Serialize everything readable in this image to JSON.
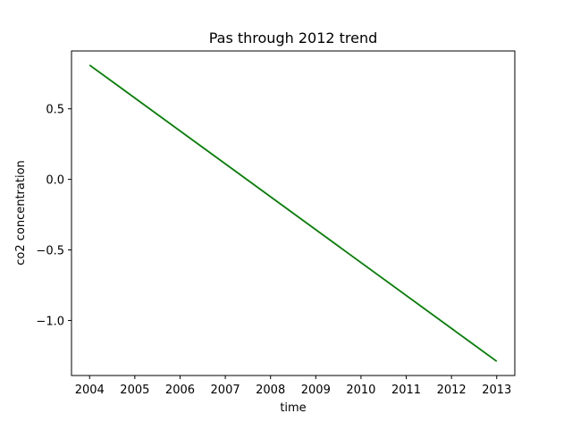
{
  "chart_data": {
    "type": "line",
    "title": "Pas through 2012 trend",
    "xlabel": "time",
    "ylabel": "co2 concentration",
    "xlim": [
      2003.6,
      2013.4
    ],
    "ylim": [
      -1.39,
      0.91
    ],
    "xticks": [
      2004,
      2005,
      2006,
      2007,
      2008,
      2009,
      2010,
      2011,
      2012,
      2013
    ],
    "xtick_labels": [
      "2004",
      "2005",
      "2006",
      "2007",
      "2008",
      "2009",
      "2010",
      "2011",
      "2012",
      "2013"
    ],
    "yticks": [
      0.5,
      0.0,
      -0.5,
      -1.0
    ],
    "ytick_labels": [
      "0.5",
      "0.0",
      "−0.5",
      "−1.0"
    ],
    "grid": false,
    "series": [
      {
        "color": "#008000",
        "x": [
          2004,
          2013
        ],
        "y": [
          0.81,
          -1.29
        ]
      }
    ]
  }
}
